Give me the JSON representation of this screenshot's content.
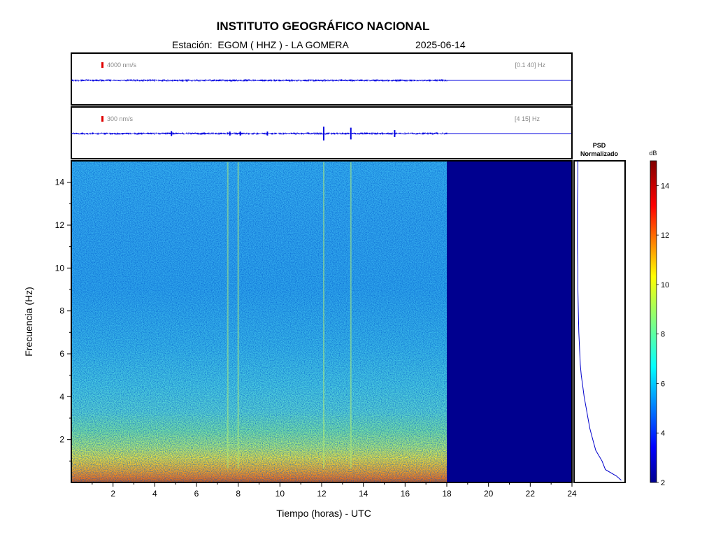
{
  "header": {
    "title": "INSTITUTO GEOGRÁFICO NACIONAL",
    "station_line": "Estación:  EGOM ( HHZ ) - LA GOMERA",
    "date": "2025-06-14"
  },
  "chart_data": [
    {
      "type": "line",
      "panel": "seismogram-broadband",
      "scale_label": "4000 nm/s",
      "filter_label": "[0.1 40] Hz",
      "xlim": [
        0,
        24
      ],
      "data_end_hour": 18,
      "bursts": []
    },
    {
      "type": "line",
      "panel": "seismogram-filtered",
      "scale_label": "300 nm/s",
      "filter_label": "[4 15] Hz",
      "xlim": [
        0,
        24
      ],
      "data_end_hour": 18,
      "bursts": [
        {
          "x": 4.8,
          "amp": 0.25
        },
        {
          "x": 7.6,
          "amp": 0.2
        },
        {
          "x": 8.1,
          "amp": 0.2
        },
        {
          "x": 9.4,
          "amp": 0.2
        },
        {
          "x": 12.1,
          "amp": 0.7
        },
        {
          "x": 13.4,
          "amp": 0.6
        },
        {
          "x": 15.5,
          "amp": 0.35
        }
      ]
    },
    {
      "type": "heatmap",
      "panel": "spectrogram",
      "xlabel": "Tiempo (horas) - UTC",
      "ylabel": "Frecuencia  (Hz)",
      "xlim": [
        0,
        24
      ],
      "ylim": [
        0,
        15
      ],
      "xticks": [
        2,
        4,
        6,
        8,
        10,
        12,
        14,
        16,
        18,
        20,
        22,
        24
      ],
      "yticks": [
        2,
        4,
        6,
        8,
        10,
        12,
        14
      ],
      "data_end_hour": 18,
      "vertical_lines_hours": [
        7.5,
        8.0,
        12.1,
        13.4
      ],
      "colorbar": {
        "label": "dB",
        "min": 2,
        "max": 15,
        "ticks": [
          2,
          4,
          6,
          8,
          10,
          12,
          14
        ],
        "colormap": [
          "#00008f",
          "#0000ff",
          "#0080ff",
          "#00ffff",
          "#80ff80",
          "#ffff00",
          "#ff8000",
          "#ff0000",
          "#800000"
        ]
      }
    },
    {
      "type": "line",
      "panel": "psd",
      "title": "PSD\nNormalizado",
      "ylim": [
        0,
        15
      ],
      "points": [
        [
          0.1,
          0.95
        ],
        [
          0.3,
          0.85
        ],
        [
          0.6,
          0.62
        ],
        [
          1.0,
          0.55
        ],
        [
          1.5,
          0.42
        ],
        [
          2.0,
          0.36
        ],
        [
          2.5,
          0.3
        ],
        [
          3.0,
          0.26
        ],
        [
          3.5,
          0.22
        ],
        [
          4.0,
          0.18
        ],
        [
          4.5,
          0.15
        ],
        [
          5.0,
          0.12
        ],
        [
          5.5,
          0.1
        ],
        [
          6.0,
          0.09
        ],
        [
          7.0,
          0.07
        ],
        [
          8.0,
          0.06
        ],
        [
          9.0,
          0.05
        ],
        [
          10.0,
          0.05
        ],
        [
          11.0,
          0.04
        ],
        [
          12.0,
          0.04
        ],
        [
          13.0,
          0.04
        ],
        [
          14.0,
          0.05
        ],
        [
          15.0,
          0.05
        ]
      ]
    }
  ]
}
